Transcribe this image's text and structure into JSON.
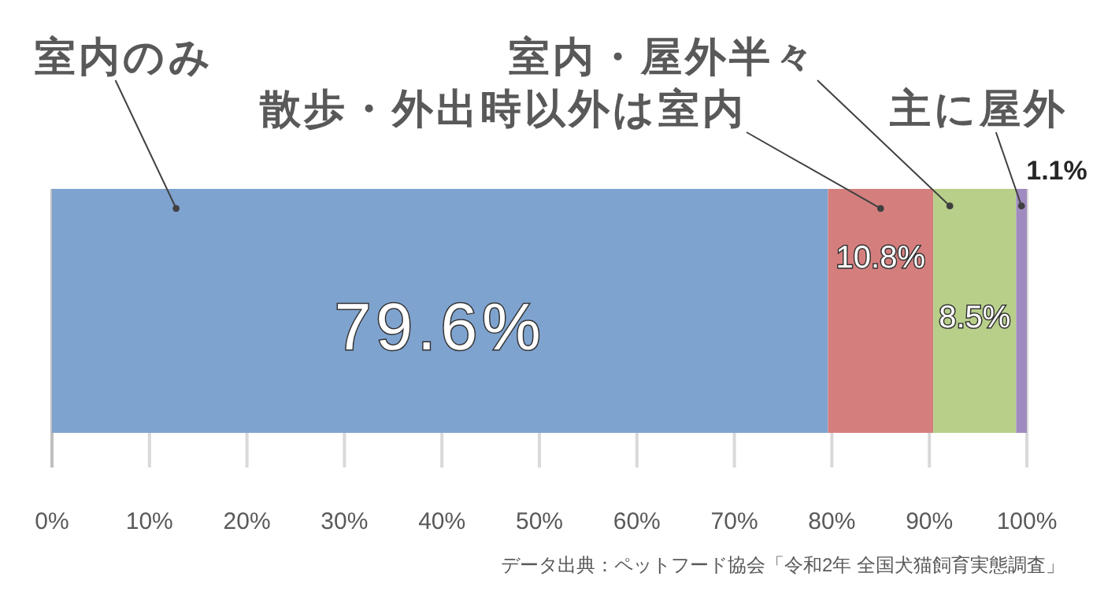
{
  "chart_data": {
    "type": "bar",
    "orientation": "horizontal",
    "stacked": true,
    "categories": [
      null
    ],
    "series": [
      {
        "name": "室内のみ",
        "color": "#7fa3cf",
        "values": [
          79.6
        ],
        "value_labels": [
          "79.6%"
        ]
      },
      {
        "name": "散歩・外出時以外は室内",
        "color": "#d47f7e",
        "values": [
          10.8
        ],
        "value_labels": [
          "10.8%"
        ]
      },
      {
        "name": "室内・屋外半々",
        "color": "#b8cf8a",
        "values": [
          8.5
        ],
        "value_labels": [
          "8.5%"
        ]
      },
      {
        "name": "主に屋外",
        "color": "#9f8bbf",
        "values": [
          1.1
        ],
        "value_labels": [
          "1.1%"
        ]
      }
    ],
    "xlim": [
      0,
      100
    ],
    "xticks": [
      {
        "value": 0,
        "label": "0%"
      },
      {
        "value": 10,
        "label": "10%"
      },
      {
        "value": 20,
        "label": "20%"
      },
      {
        "value": 30,
        "label": "30%"
      },
      {
        "value": 40,
        "label": "40%"
      },
      {
        "value": 50,
        "label": "50%"
      },
      {
        "value": 60,
        "label": "60%"
      },
      {
        "value": 70,
        "label": "70%"
      },
      {
        "value": 80,
        "label": "80%"
      },
      {
        "value": 90,
        "label": "90%"
      },
      {
        "value": 100,
        "label": "100%"
      }
    ],
    "grid": "x",
    "annotations": [
      "データ出典：ペットフード協会「令和2年 全国犬猫飼育実態調査」"
    ]
  }
}
